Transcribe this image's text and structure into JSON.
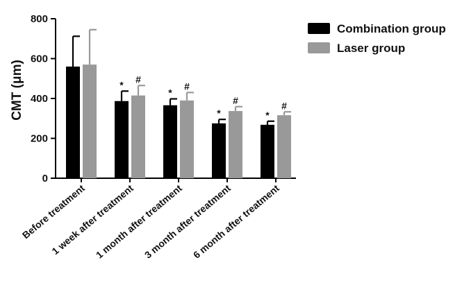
{
  "chart_data": {
    "type": "bar",
    "title": "",
    "xlabel": "",
    "ylabel": "CMT (μm)",
    "ylim": [
      0,
      800
    ],
    "yticks": [
      0,
      200,
      400,
      600,
      800
    ],
    "grid": false,
    "legend_position": "top-right",
    "categories": [
      "Before treatment",
      "1 week after treatment",
      "1 month after treatment",
      "3 month after treatment",
      "6 month after treatment"
    ],
    "series": [
      {
        "name": "Combination group",
        "color": "#000000",
        "values": [
          560,
          387,
          366,
          275,
          268
        ],
        "errors": [
          152,
          50,
          32,
          20,
          18
        ],
        "annotations": [
          "",
          "*",
          "*",
          "*",
          "*"
        ]
      },
      {
        "name": "Laser group",
        "color": "#999999",
        "values": [
          570,
          415,
          390,
          337,
          316
        ],
        "errors": [
          175,
          50,
          40,
          22,
          17
        ],
        "annotations": [
          "",
          "#",
          "#",
          "#",
          "#"
        ]
      }
    ]
  }
}
